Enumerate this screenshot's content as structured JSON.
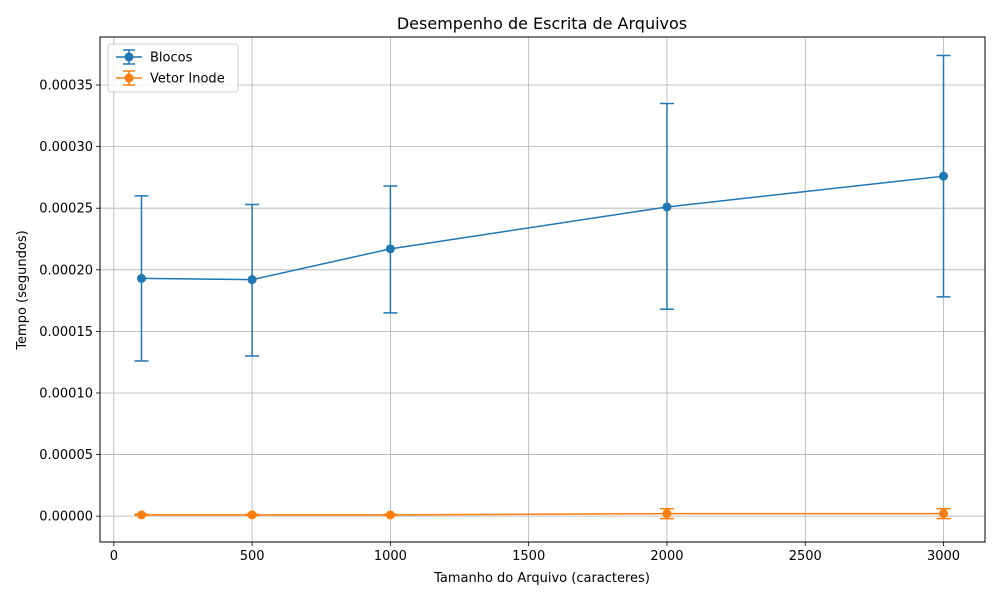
{
  "chart_data": {
    "type": "line",
    "title": "Desempenho de Escrita de Arquivos",
    "xlabel": "Tamanho do Arquivo (caracteres)",
    "ylabel": "Tempo (segundos)",
    "xlim": [
      -50,
      3150
    ],
    "ylim": [
      -2.1e-05,
      0.000389
    ],
    "xticks": [
      0,
      500,
      1000,
      1500,
      2000,
      2500,
      3000
    ],
    "xtick_labels": [
      "0",
      "500",
      "1000",
      "1500",
      "2000",
      "2500",
      "3000"
    ],
    "yticks": [
      0,
      5e-05,
      0.0001,
      0.00015,
      0.0002,
      0.00025,
      0.0003,
      0.00035
    ],
    "ytick_labels": [
      "0.00000",
      "0.00005",
      "0.00010",
      "0.00015",
      "0.00020",
      "0.00025",
      "0.00030",
      "0.00035"
    ],
    "grid": true,
    "legend_position": "top-left",
    "series": [
      {
        "name": "Blocos",
        "color": "#1f77b4",
        "x": [
          100,
          500,
          1000,
          2000,
          3000
        ],
        "y": [
          0.000193,
          0.000192,
          0.000217,
          0.000251,
          0.000276
        ],
        "yerr_low": [
          0.000126,
          0.00013,
          0.000165,
          0.000168,
          0.000178
        ],
        "yerr_high": [
          0.00026,
          0.000253,
          0.000268,
          0.000335,
          0.000374
        ]
      },
      {
        "name": "Vetor Inode",
        "color": "#ff7f0e",
        "x": [
          100,
          500,
          1000,
          2000,
          3000
        ],
        "y": [
          1e-06,
          1e-06,
          1e-06,
          2e-06,
          2e-06
        ],
        "yerr_low": [
          5e-07,
          5e-07,
          5e-07,
          -2e-06,
          -2e-06
        ],
        "yerr_high": [
          1.5e-06,
          1.5e-06,
          1.5e-06,
          6e-06,
          6e-06
        ]
      }
    ]
  }
}
